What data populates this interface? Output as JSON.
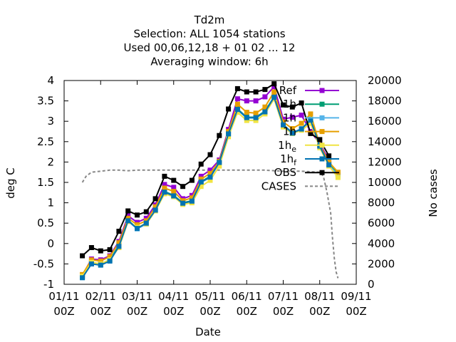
{
  "chart_data": {
    "type": "line",
    "title": [
      "Td2m",
      "Selection: ALL    1054 stations",
      "Used  00,06,12,18 + 01 02 ... 12",
      "Averaging window:  6h"
    ],
    "xlabel": "Date",
    "ylabel": "deg C",
    "y2label": "No cases",
    "grid": false,
    "legend_placement": "top-right",
    "xticks": [
      {
        "line1": "01/11",
        "line2": "00Z"
      },
      {
        "line1": "02/11",
        "line2": "00Z"
      },
      {
        "line1": "03/11",
        "line2": "00Z"
      },
      {
        "line1": "04/11",
        "line2": "00Z"
      },
      {
        "line1": "05/11",
        "line2": "00Z"
      },
      {
        "line1": "06/11",
        "line2": "00Z"
      },
      {
        "line1": "07/11",
        "line2": "00Z"
      },
      {
        "line1": "08/11",
        "line2": "00Z"
      },
      {
        "line1": "09/11",
        "line2": "00Z"
      }
    ],
    "xlim": [
      0,
      8
    ],
    "ylim": [
      -1,
      4
    ],
    "y2lim": [
      0,
      20000
    ],
    "yticks": [
      "-1",
      "-0.5",
      "0",
      "0.5",
      "1",
      "1.5",
      "2",
      "2.5",
      "3",
      "3.5",
      "4"
    ],
    "y2ticks": [
      "0",
      "2000",
      "4000",
      "6000",
      "8000",
      "10000",
      "12000",
      "14000",
      "16000",
      "18000",
      "20000"
    ],
    "x": [
      0.5,
      0.75,
      1.0,
      1.25,
      1.5,
      1.75,
      2.0,
      2.25,
      2.5,
      2.75,
      3.0,
      3.25,
      3.5,
      3.75,
      4.0,
      4.25,
      4.5,
      4.75,
      5.0,
      5.25,
      5.5,
      5.75,
      6.0,
      6.25,
      6.5,
      6.75,
      7.0,
      7.25,
      7.5
    ],
    "series": [
      {
        "name": "Ref",
        "color": "#9400d3",
        "marker": "box",
        "values": [
          -0.78,
          -0.38,
          -0.4,
          -0.3,
          0.05,
          0.68,
          0.52,
          0.62,
          0.95,
          1.45,
          1.38,
          1.1,
          1.18,
          1.65,
          1.8,
          2.05,
          2.8,
          3.55,
          3.5,
          3.5,
          3.6,
          3.85,
          3.05,
          3.1,
          3.15,
          2.75,
          2.45,
          2.05,
          null
        ]
      },
      {
        "name": "1h",
        "sub": "",
        "color": "#009e73",
        "marker": "box",
        "values": [
          -0.82,
          -0.48,
          -0.5,
          -0.4,
          -0.05,
          0.57,
          0.38,
          0.5,
          0.82,
          1.28,
          1.18,
          1.0,
          1.05,
          1.52,
          1.65,
          2.0,
          2.7,
          3.3,
          3.1,
          3.1,
          3.25,
          3.6,
          2.9,
          2.7,
          2.8,
          3.05,
          2.4,
          1.95,
          1.7
        ]
      },
      {
        "name": "1h",
        "sub": "",
        "color": "#56b4e9",
        "marker": "box",
        "values": [
          -0.83,
          -0.5,
          -0.52,
          -0.42,
          -0.08,
          0.55,
          0.36,
          0.48,
          0.8,
          1.25,
          1.15,
          0.98,
          1.03,
          1.5,
          1.62,
          1.98,
          2.68,
          3.28,
          3.08,
          3.08,
          3.22,
          3.58,
          2.92,
          2.72,
          2.82,
          3.02,
          2.38,
          1.92,
          1.68
        ]
      },
      {
        "name": "1h",
        "sub": "",
        "color": "#e69f00",
        "marker": "box",
        "values": [
          -0.76,
          -0.4,
          -0.43,
          -0.32,
          0.02,
          0.62,
          0.46,
          0.56,
          0.9,
          1.36,
          1.28,
          1.05,
          1.12,
          1.58,
          1.72,
          2.02,
          2.75,
          3.42,
          3.22,
          3.2,
          3.35,
          3.72,
          2.98,
          2.82,
          2.95,
          3.18,
          2.42,
          2.0,
          1.75
        ]
      },
      {
        "name": "1h",
        "sub": "e",
        "color": "#f0e442",
        "marker": "box",
        "values": [
          -0.8,
          -0.46,
          -0.5,
          -0.4,
          -0.1,
          0.54,
          0.4,
          0.48,
          0.8,
          1.22,
          1.15,
          0.96,
          1.0,
          1.4,
          1.55,
          1.9,
          2.62,
          3.22,
          3.02,
          3.02,
          3.18,
          3.55,
          2.86,
          2.7,
          2.78,
          2.95,
          2.35,
          1.9,
          1.62
        ]
      },
      {
        "name": "1h",
        "sub": "f",
        "color": "#0072b2",
        "marker": "box",
        "values": [
          -0.84,
          -0.5,
          -0.53,
          -0.43,
          -0.07,
          0.56,
          0.37,
          0.5,
          0.82,
          1.26,
          1.17,
          0.99,
          1.04,
          1.51,
          1.63,
          1.99,
          2.69,
          3.29,
          3.09,
          3.09,
          3.23,
          3.59,
          2.91,
          2.71,
          2.81,
          3.03,
          2.39,
          1.93,
          null
        ]
      },
      {
        "name": "OBS",
        "color": "#000000",
        "marker": "box",
        "values": [
          -0.3,
          -0.1,
          -0.18,
          -0.15,
          0.3,
          0.8,
          0.7,
          0.78,
          1.1,
          1.65,
          1.55,
          1.4,
          1.55,
          1.95,
          2.18,
          2.65,
          3.3,
          3.8,
          3.72,
          3.72,
          3.78,
          3.92,
          3.4,
          3.35,
          3.45,
          2.7,
          2.55,
          2.15,
          null
        ]
      }
    ],
    "cases": {
      "name": "CASES",
      "color": "#888888",
      "axis": "y2",
      "x": [
        0.5,
        0.6,
        0.75,
        1.0,
        1.25,
        1.5,
        1.75,
        2.0,
        2.5,
        3.0,
        3.5,
        4.0,
        4.5,
        5.0,
        5.5,
        5.75,
        6.0,
        6.5,
        7.0,
        7.1,
        7.2,
        7.3,
        7.35,
        7.4,
        7.45,
        7.5
      ],
      "values": [
        10000,
        10600,
        11000,
        11100,
        11200,
        11200,
        11150,
        11200,
        11200,
        11200,
        11200,
        11200,
        11200,
        11200,
        11200,
        11150,
        11100,
        11100,
        11000,
        10600,
        9000,
        7000,
        4500,
        2500,
        1200,
        600
      ]
    }
  }
}
